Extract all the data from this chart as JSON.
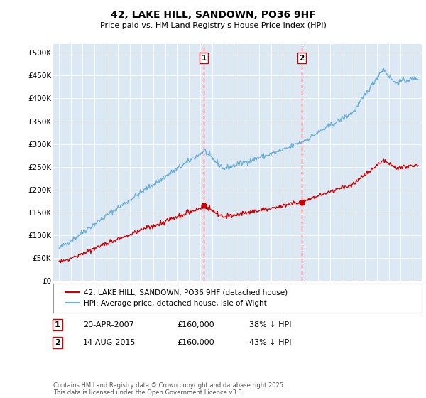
{
  "title": "42, LAKE HILL, SANDOWN, PO36 9HF",
  "subtitle": "Price paid vs. HM Land Registry's House Price Index (HPI)",
  "bg_color": "#dce9f5",
  "hpi_color": "#6baed6",
  "price_color": "#cc0000",
  "vline_color": "#cc0000",
  "ylim": [
    0,
    520000
  ],
  "yticks": [
    0,
    50000,
    100000,
    150000,
    200000,
    250000,
    300000,
    350000,
    400000,
    450000,
    500000
  ],
  "sale1_x": 2007.3,
  "sale2_x": 2015.62,
  "sale1_price": 160000,
  "sale2_price": 160000,
  "legend_line1": "42, LAKE HILL, SANDOWN, PO36 9HF (detached house)",
  "legend_line2": "HPI: Average price, detached house, Isle of Wight",
  "table_row1": [
    "1",
    "20-APR-2007",
    "£160,000",
    "38% ↓ HPI"
  ],
  "table_row2": [
    "2",
    "14-AUG-2015",
    "£160,000",
    "43% ↓ HPI"
  ],
  "footer": "Contains HM Land Registry data © Crown copyright and database right 2025.\nThis data is licensed under the Open Government Licence v3.0."
}
